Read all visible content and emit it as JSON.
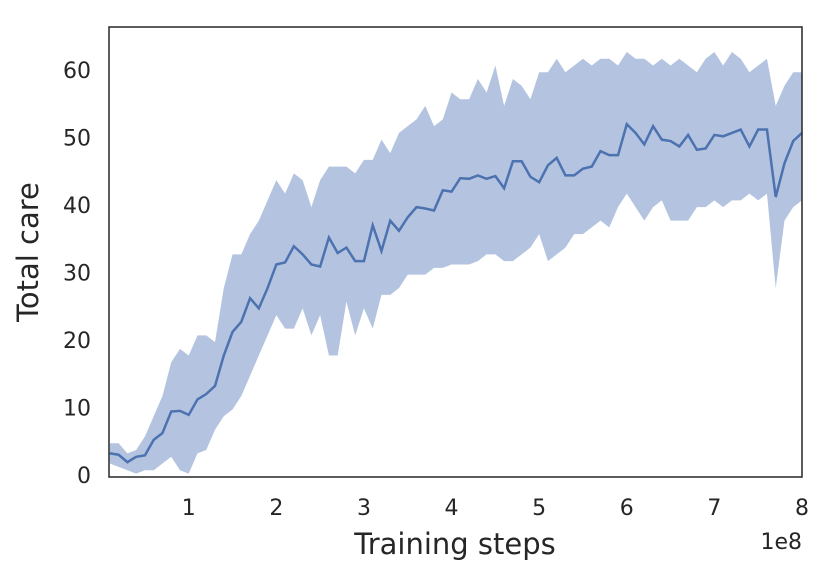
{
  "chart_data": {
    "type": "line",
    "x_label": "Training steps",
    "y_label": "Total care",
    "x_offset_label": "1e8",
    "x": [
      0.1,
      0.2,
      0.3,
      0.4,
      0.5,
      0.6,
      0.7,
      0.8,
      0.9,
      1.0,
      1.1,
      1.2,
      1.3,
      1.4,
      1.5,
      1.6,
      1.7,
      1.8,
      1.9,
      2.0,
      2.1,
      2.2,
      2.3,
      2.4,
      2.5,
      2.6,
      2.7,
      2.8,
      2.9,
      3.0,
      3.1,
      3.2,
      3.3,
      3.4,
      3.5,
      3.6,
      3.7,
      3.8,
      3.9,
      4.0,
      4.1,
      4.2,
      4.3,
      4.4,
      4.5,
      4.6,
      4.7,
      4.8,
      4.9,
      5.0,
      5.1,
      5.2,
      5.3,
      5.4,
      5.5,
      5.6,
      5.7,
      5.8,
      5.9,
      6.0,
      6.1,
      6.2,
      6.3,
      6.4,
      6.5,
      6.6,
      6.7,
      6.8,
      6.9,
      7.0,
      7.1,
      7.2,
      7.3,
      7.4,
      7.5,
      7.6,
      7.7,
      7.8,
      7.9,
      8.0
    ],
    "values": [
      3.5,
      3.3,
      2.2,
      3.0,
      3.2,
      5.5,
      6.5,
      9.7,
      9.8,
      9.2,
      11.5,
      12.3,
      13.5,
      18.0,
      21.5,
      23.0,
      26.5,
      25.0,
      28.0,
      31.5,
      31.8,
      34.2,
      33.0,
      31.5,
      31.2,
      35.5,
      33.2,
      34.0,
      32.0,
      32.0,
      37.3,
      33.5,
      38.0,
      36.5,
      38.5,
      40.0,
      39.8,
      39.5,
      42.5,
      42.3,
      44.3,
      44.2,
      44.7,
      44.2,
      44.6,
      42.8,
      46.8,
      46.8,
      44.5,
      43.7,
      46.2,
      47.3,
      44.7,
      44.7,
      45.7,
      46.0,
      48.3,
      47.7,
      47.7,
      52.3,
      51.0,
      49.3,
      52.0,
      50.0,
      49.8,
      49.0,
      50.7,
      48.5,
      48.7,
      50.7,
      50.5,
      51.0,
      51.5,
      49.0,
      51.5,
      51.5,
      41.5,
      46.5,
      49.8,
      51.0
    ],
    "upper": [
      5,
      5,
      3.5,
      4,
      6,
      9,
      12,
      17,
      19,
      18,
      21,
      21,
      20,
      28,
      33,
      33,
      36,
      38,
      41,
      44,
      42,
      45,
      44,
      40,
      44,
      46,
      46,
      46,
      45,
      47,
      47,
      50,
      48,
      51,
      52,
      53,
      55,
      52,
      53,
      57,
      56,
      56,
      59,
      57,
      61,
      55,
      59,
      58,
      56,
      60,
      60,
      62,
      60,
      61,
      62,
      61,
      62,
      62,
      61,
      63,
      62,
      62,
      61,
      62,
      61,
      62,
      61,
      60,
      62,
      63,
      61,
      63,
      62,
      60,
      61,
      62,
      55,
      58,
      60,
      60
    ],
    "lower": [
      2,
      1.5,
      1,
      0.5,
      1,
      1,
      2,
      3,
      1,
      0.5,
      3.5,
      4,
      7,
      9,
      10,
      12,
      15,
      18,
      21,
      24,
      22,
      22,
      25,
      21,
      24,
      18,
      18,
      26,
      21,
      25,
      22,
      27,
      27,
      28,
      30,
      30,
      30,
      31,
      31,
      31.5,
      31.5,
      31.5,
      32,
      33,
      33,
      32,
      32,
      33,
      34,
      36,
      32,
      33,
      34,
      36,
      36,
      37,
      38,
      37,
      40,
      42,
      40,
      38,
      40,
      41,
      38,
      38,
      38,
      40,
      40,
      41,
      40,
      41,
      41,
      42,
      41,
      42,
      28,
      38,
      40,
      41
    ],
    "color": "#4c72b0",
    "band_color": "#b4c4e0",
    "xlim": [
      0.09,
      8
    ],
    "ylim": [
      0,
      66.7
    ],
    "xticks": [
      1,
      2,
      3,
      4,
      5,
      6,
      7,
      8
    ],
    "yticks": [
      0,
      10,
      20,
      30,
      40,
      50,
      60
    ]
  }
}
